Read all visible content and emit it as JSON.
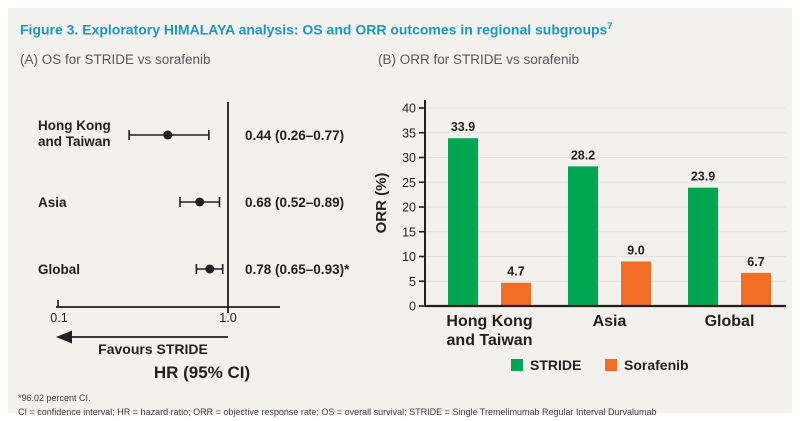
{
  "title": {
    "text": "Figure 3. Exploratory HIMALAYA analysis: OS and ORR outcomes in regional subgroups",
    "superscript": "7"
  },
  "panels": {
    "a_label": "(A) OS for STRIDE vs sorafenib",
    "b_label": "(B) ORR for STRIDE vs sorafenib"
  },
  "colors": {
    "title_blue": "#1898c4",
    "panel_gray": "#58585a",
    "ink": "#231f20",
    "background": "#f2f1ee",
    "stride_green": "#00a651",
    "sorafenib_orange": "#f26e26",
    "gridline": "#e4e3df"
  },
  "chart_data": [
    {
      "type": "scatter",
      "subtype": "forest-plot",
      "title": "(A) OS for STRIDE vs sorafenib",
      "xlabel": "HR (95% CI)",
      "x_scale": "log10",
      "xlim": [
        0.1,
        2.0
      ],
      "x_ticks": [
        {
          "value": 0.1,
          "label": "0.1"
        },
        {
          "value": 1.0,
          "label": "1.0"
        }
      ],
      "reference_line_x": 1.0,
      "favours_arrow": {
        "direction": "left",
        "label": "Favours STRIDE"
      },
      "rows": [
        {
          "label_lines": [
            "Hong Kong",
            "and Taiwan"
          ],
          "hr": 0.44,
          "ci_low": 0.26,
          "ci_high": 0.77,
          "display": "0.44 (0.26–0.77)"
        },
        {
          "label_lines": [
            "Asia"
          ],
          "hr": 0.68,
          "ci_low": 0.52,
          "ci_high": 0.89,
          "display": "0.68 (0.52–0.89)"
        },
        {
          "label_lines": [
            "Global"
          ],
          "hr": 0.78,
          "ci_low": 0.65,
          "ci_high": 0.93,
          "display": "0.78 (0.65–0.93)*"
        }
      ]
    },
    {
      "type": "bar",
      "title": "(B) ORR for STRIDE vs sorafenib",
      "ylabel": "ORR (%)",
      "ylim": [
        0,
        40
      ],
      "y_ticks": [
        0,
        5,
        10,
        15,
        20,
        25,
        30,
        35,
        40
      ],
      "grid": true,
      "legend_position": "bottom",
      "categories": [
        [
          "Hong Kong",
          "and Taiwan"
        ],
        [
          "Asia"
        ],
        [
          "Global"
        ]
      ],
      "series": [
        {
          "name": "STRIDE",
          "color": "#00a651",
          "values": [
            33.9,
            28.2,
            23.9
          ]
        },
        {
          "name": "Sorafenib",
          "color": "#f26e26",
          "values": [
            4.7,
            9.0,
            6.7
          ]
        }
      ]
    }
  ],
  "footnotes": [
    "*96.02 percent CI.",
    "CI = confidence interval; HR = hazard ratio; ORR = objective response rate; OS = overall survival; STRIDE = Single Tremelimumab Regular Interval Durvalumab"
  ]
}
